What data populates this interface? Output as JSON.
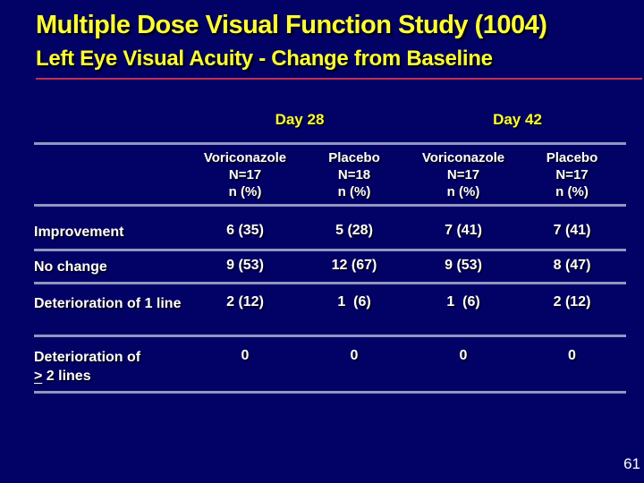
{
  "slide": {
    "title": "Multiple Dose Visual Function Study (1004)",
    "subtitle": "Left Eye Visual Acuity - Change from Baseline",
    "page_number": "61"
  },
  "colors": {
    "background": "#010166",
    "title_yellow": "#ffff33",
    "red_divider": "#c23352",
    "table_line": "#9295bf",
    "body_text": "#ffffff"
  },
  "table": {
    "day_groups": [
      {
        "label": "Day 28"
      },
      {
        "label": "Day 42"
      }
    ],
    "columns": [
      {
        "drug": "Voriconazole",
        "n": "N=17",
        "unit": "n (%)"
      },
      {
        "drug": "Placebo",
        "n": "N=18",
        "unit": "n (%)"
      },
      {
        "drug": "Voriconazole",
        "n": "N=17",
        "unit": "n (%)"
      },
      {
        "drug": "Placebo",
        "n": "N=17",
        "unit": "n (%)"
      }
    ],
    "rows": [
      {
        "label": "Improvement",
        "values": [
          "6 (35)",
          "5 (28)",
          "7 (41)",
          "7 (41)"
        ]
      },
      {
        "label": "No change",
        "values": [
          "9 (53)",
          "12 (67)",
          "9 (53)",
          "8 (47)"
        ]
      },
      {
        "label": "Deterioration of 1 line",
        "values": [
          "2 (12)",
          "1  (6)",
          "1  (6)",
          "2 (12)"
        ]
      },
      {
        "label_line1": "Deterioration of",
        "label_ge_symbol": ">",
        "label_line2": "2 lines",
        "values": [
          "0",
          "0",
          "0",
          "0"
        ]
      }
    ]
  }
}
